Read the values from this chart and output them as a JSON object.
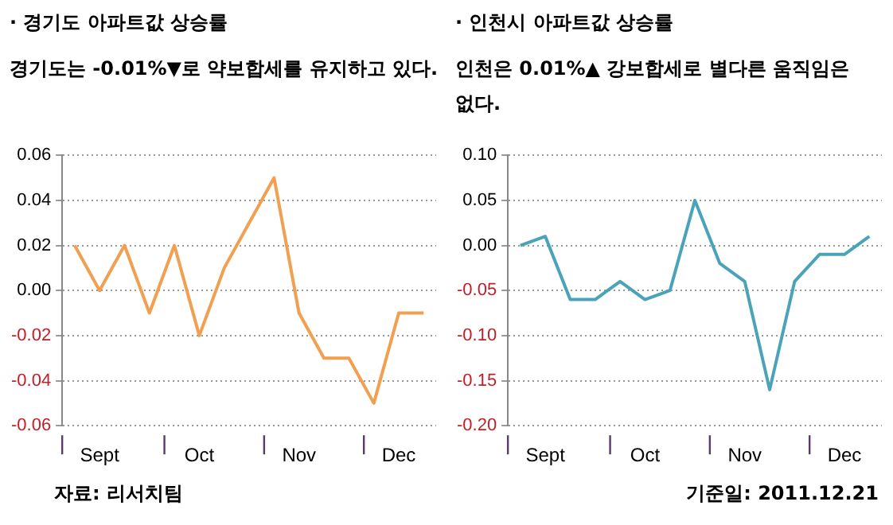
{
  "chart_data": [
    {
      "type": "line",
      "title": "· 경기도 아파트값 상승률",
      "subtitle": "경기도는 -0.01%▼로 약보합세를 유지하고 있다.",
      "categories": [
        null,
        "Sept",
        null,
        null,
        null,
        "Oct",
        null,
        null,
        null,
        "Nov",
        null,
        null,
        null,
        "Dec",
        null
      ],
      "series": [
        {
          "color": "#f0a050",
          "values": [
            0.02,
            0,
            0.02,
            -0.01,
            0.02,
            -0.02,
            0.01,
            0.03,
            0.05,
            -0.01,
            -0.03,
            -0.03,
            -0.05,
            -0.01,
            -0.01
          ]
        }
      ],
      "ylim": [
        -0.06,
        0.06
      ],
      "yticks": [
        {
          "value": -0.06,
          "label": "-0.06"
        },
        {
          "value": -0.04,
          "label": "-0.04"
        },
        {
          "value": -0.02,
          "label": "-0.02"
        },
        {
          "value": 0,
          "label": "0.00"
        },
        {
          "value": 0.02,
          "label": "0.02"
        },
        {
          "value": 0.04,
          "label": "0.04"
        },
        {
          "value": 0.06,
          "label": "0.06"
        }
      ],
      "grid": "y",
      "legend": false,
      "marker": "none",
      "line_style": "solid",
      "annotations": [
        "자료: 리서치팀"
      ]
    },
    {
      "type": "line",
      "title": "· 인천시 아파트값 상승률",
      "subtitle": "인천은  0.01%▲ 강보합세로 별다른 움직임은 없다.",
      "categories": [
        null,
        "Sept",
        null,
        null,
        null,
        "Oct",
        null,
        null,
        null,
        "Nov",
        null,
        null,
        null,
        "Dec",
        null
      ],
      "series": [
        {
          "color": "#4aa3b8",
          "values": [
            0,
            0.01,
            -0.06,
            -0.06,
            -0.04,
            -0.06,
            -0.05,
            0.05,
            -0.02,
            -0.04,
            -0.16,
            -0.04,
            -0.01,
            -0.01,
            0.01
          ]
        }
      ],
      "ylim": [
        -0.2,
        0.1
      ],
      "yticks": [
        {
          "value": -0.2,
          "label": "-0.20"
        },
        {
          "value": -0.15,
          "label": "-0.15"
        },
        {
          "value": -0.1,
          "label": "-0.10"
        },
        {
          "value": -0.05,
          "label": "-0.05"
        },
        {
          "value": 0,
          "label": "0.00"
        },
        {
          "value": 0.05,
          "label": "0.05"
        },
        {
          "value": 0.1,
          "label": "0.10"
        }
      ],
      "grid": "y",
      "legend": false,
      "marker": "none",
      "line_style": "solid",
      "annotations": [
        "기준일: 2011.12.21"
      ]
    }
  ]
}
